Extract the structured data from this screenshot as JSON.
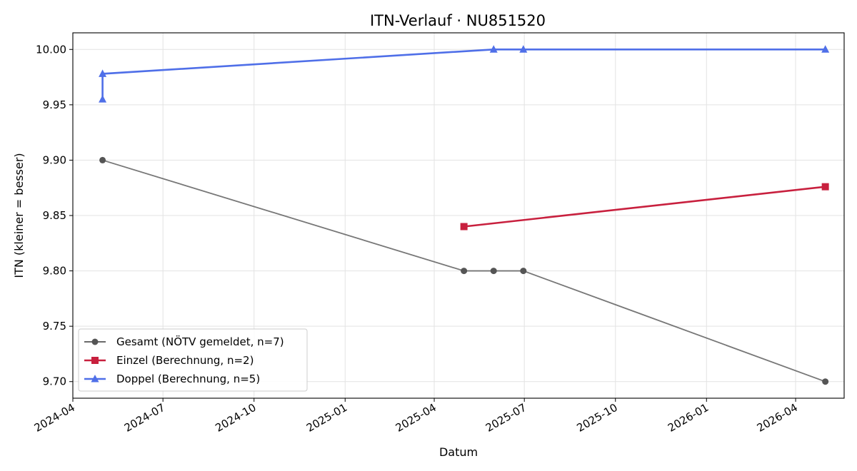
{
  "chart_data": {
    "type": "line",
    "title": "ITN-Verlauf · NU851520",
    "xlabel": "Datum",
    "ylabel": "ITN  (kleiner = besser)",
    "x_is_date": true,
    "xlim": [
      "2024-04-01",
      "2026-05-20"
    ],
    "ylim": [
      9.685,
      10.015
    ],
    "xticks": [
      "2024-04",
      "2024-07",
      "2024-10",
      "2025-01",
      "2025-04",
      "2025-07",
      "2025-10",
      "2026-01",
      "2026-04"
    ],
    "yticks": [
      "9.70",
      "9.75",
      "9.80",
      "9.85",
      "9.90",
      "9.95",
      "10.00"
    ],
    "grid": true,
    "legend_position": "lower-left",
    "series": [
      {
        "name": "Gesamt (NÖTV gemeldet, n=7)",
        "color": "#555555",
        "marker": "circle",
        "points": [
          {
            "x": "2024-05-01",
            "y": 9.9
          },
          {
            "x": "2025-05-01",
            "y": 9.8
          },
          {
            "x": "2025-05-31",
            "y": 9.8
          },
          {
            "x": "2025-06-30",
            "y": 9.8
          },
          {
            "x": "2026-05-01",
            "y": 9.7
          }
        ]
      },
      {
        "name": "Einzel (Berechnung, n=2)",
        "color": "#c8203e",
        "marker": "square",
        "points": [
          {
            "x": "2025-05-01",
            "y": 9.84
          },
          {
            "x": "2026-05-01",
            "y": 9.876
          }
        ]
      },
      {
        "name": "Doppel (Berechnung, n=5)",
        "color": "#4f6fe8",
        "marker": "triangle",
        "points": [
          {
            "x": "2024-05-01",
            "y": 9.955
          },
          {
            "x": "2024-05-01",
            "y": 9.978
          },
          {
            "x": "2025-05-31",
            "y": 10.0
          },
          {
            "x": "2025-06-30",
            "y": 10.0
          },
          {
            "x": "2026-05-01",
            "y": 10.0
          }
        ]
      }
    ]
  }
}
